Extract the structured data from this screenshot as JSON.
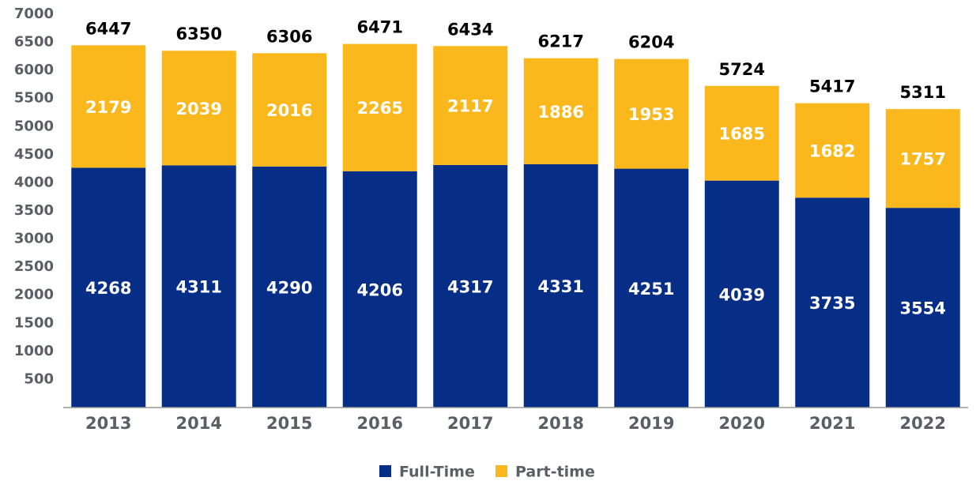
{
  "chart_data": {
    "type": "stacked_bar",
    "categories": [
      "2013",
      "2014",
      "2015",
      "2016",
      "2017",
      "2018",
      "2019",
      "2020",
      "2021",
      "2022"
    ],
    "series": [
      {
        "name": "Full-Time",
        "color": "#062e87",
        "values": [
          4268,
          4311,
          4290,
          4206,
          4317,
          4331,
          4251,
          4039,
          3735,
          3554
        ]
      },
      {
        "name": "Part-time",
        "color": "#fbb81c",
        "values": [
          2179,
          2039,
          2016,
          2265,
          2117,
          1886,
          1953,
          1685,
          1682,
          1757
        ]
      }
    ],
    "totals": [
      6447,
      6350,
      6306,
      6471,
      6434,
      6217,
      6204,
      5724,
      5417,
      5311
    ],
    "ylim": [
      0,
      7000
    ],
    "yticks": [
      500,
      1000,
      1500,
      2000,
      2500,
      3000,
      3500,
      4000,
      4500,
      5000,
      5500,
      6000,
      6500,
      7000
    ],
    "grid": false
  }
}
